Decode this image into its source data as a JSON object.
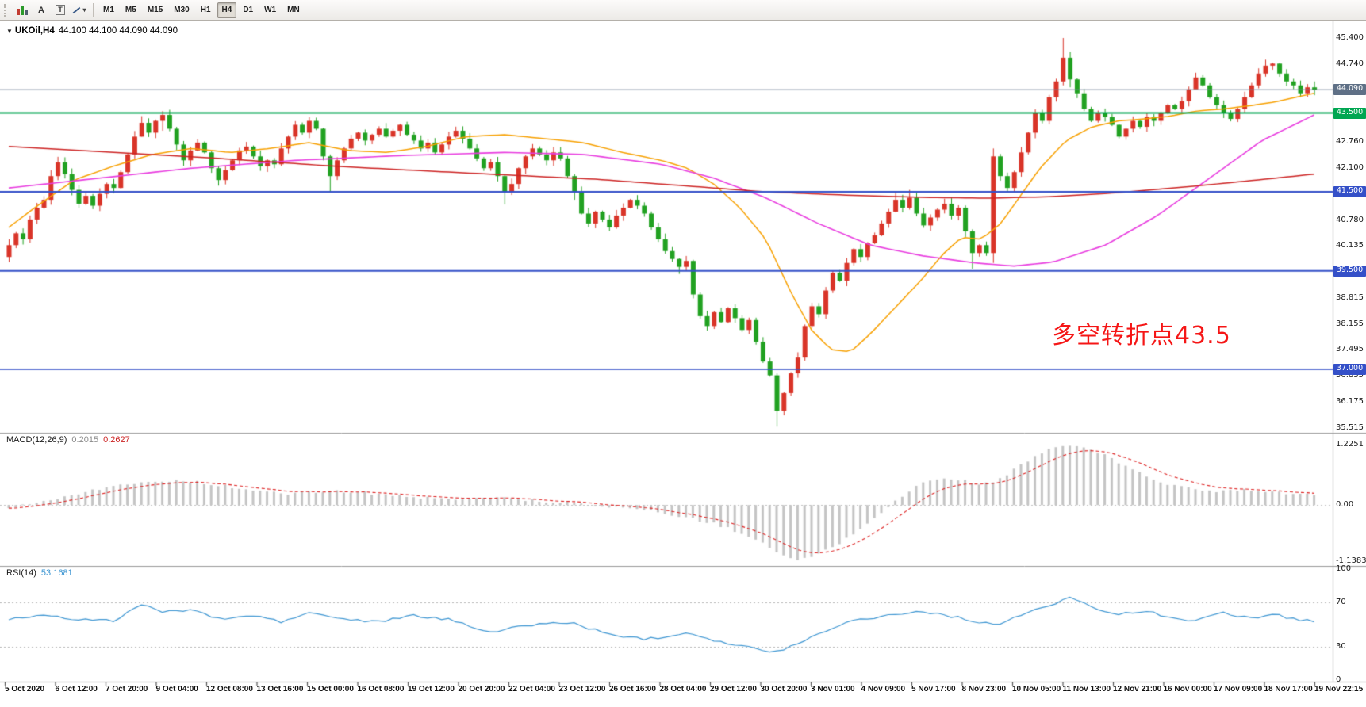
{
  "toolbar": {
    "tools": [
      {
        "icon": "candlestick-chart-icon"
      },
      {
        "icon": "letter-a-icon",
        "label": "A"
      },
      {
        "icon": "text-box-icon",
        "label": "T"
      },
      {
        "icon": "trendline-icon",
        "caret": "▾"
      }
    ],
    "timeframes": [
      {
        "label": "M1"
      },
      {
        "label": "M5"
      },
      {
        "label": "M15"
      },
      {
        "label": "M30"
      },
      {
        "label": "H1"
      },
      {
        "label": "H4",
        "active": true
      },
      {
        "label": "D1"
      },
      {
        "label": "W1"
      },
      {
        "label": "MN"
      }
    ]
  },
  "title": {
    "oneclick": "▼",
    "symbol_period": "UKOil,H4",
    "ohlc": "44.100 44.100 44.090 44.090"
  },
  "annotation": {
    "text": "多空转折点43.5",
    "color": "#f51616"
  },
  "indicators": {
    "macd": {
      "name": "MACD(12,26,9)",
      "value_main": "0.2015",
      "value_signal": "0.2627",
      "scale": [
        {
          "text": "1.2251",
          "value": 1.2251
        },
        {
          "text": "0.00",
          "value": 0
        },
        {
          "text": "-1.1383",
          "value": -1.1383
        }
      ]
    },
    "rsi": {
      "name": "RSI(14)",
      "value": "53.1681",
      "scale": [
        {
          "text": "100",
          "value": 100
        },
        {
          "text": "70",
          "value": 70
        },
        {
          "text": "30",
          "value": 30
        },
        {
          "text": "0",
          "value": 0
        }
      ],
      "levels": [
        70,
        30
      ]
    }
  },
  "price_scale": {
    "labels": [
      {
        "text": "45.400",
        "value": 45.4
      },
      {
        "text": "44.740",
        "value": 44.74
      },
      {
        "text": "42.760",
        "value": 42.76
      },
      {
        "text": "42.100",
        "value": 42.1
      },
      {
        "text": "40.780",
        "value": 40.78
      },
      {
        "text": "40.135",
        "value": 40.135
      },
      {
        "text": "38.815",
        "value": 38.815
      },
      {
        "text": "38.155",
        "value": 38.155
      },
      {
        "text": "37.495",
        "value": 37.495
      },
      {
        "text": "36.835",
        "value": 36.835
      },
      {
        "text": "36.175",
        "value": 36.175
      },
      {
        "text": "35.515",
        "value": 35.515
      }
    ],
    "boxed": [
      {
        "text": "44.090",
        "value": 44.09,
        "bg": "#5f7086"
      },
      {
        "text": "43.500",
        "value": 43.5,
        "bg": "#00a651"
      },
      {
        "text": "41.500",
        "value": 41.5,
        "bg": "#3450c8"
      },
      {
        "text": "39.500",
        "value": 39.5,
        "bg": "#3450c8"
      },
      {
        "text": "37.000",
        "value": 37.0,
        "bg": "#3450c8"
      }
    ]
  },
  "time_scale": {
    "labels": [
      "5 Oct 2020",
      "6 Oct 12:00",
      "7 Oct 20:00",
      "9 Oct 04:00",
      "12 Oct 08:00",
      "13 Oct 16:00",
      "15 Oct 00:00",
      "16 Oct 08:00",
      "19 Oct 12:00",
      "20 Oct 20:00",
      "22 Oct 04:00",
      "23 Oct 12:00",
      "26 Oct 16:00",
      "28 Oct 04:00",
      "29 Oct 12:00",
      "30 Oct 20:00",
      "3 Nov 01:00",
      "4 Nov 09:00",
      "5 Nov 17:00",
      "8 Nov 23:00",
      "10 Nov 05:00",
      "11 Nov 13:00",
      "12 Nov 21:00",
      "16 Nov 00:00",
      "17 Nov 09:00",
      "18 Nov 17:00",
      "19 Nov 22:15"
    ]
  },
  "chart_data": {
    "type": "candlestick",
    "symbol": "UKOil",
    "period": "H4",
    "price_range": [
      35.515,
      45.4
    ],
    "style": {
      "up_color": "#d93428",
      "down_color": "#21a121"
    },
    "candles": {
      "first_open": 39.85,
      "closes": [
        40.15,
        40.45,
        40.3,
        40.8,
        41.1,
        41.3,
        41.9,
        42.25,
        41.95,
        41.55,
        41.2,
        41.4,
        41.15,
        41.45,
        41.7,
        41.6,
        42.0,
        42.45,
        42.9,
        43.25,
        43.0,
        43.3,
        43.45,
        43.1,
        42.7,
        42.3,
        42.55,
        42.75,
        42.5,
        42.1,
        41.8,
        42.05,
        42.3,
        42.55,
        42.65,
        42.4,
        42.15,
        42.3,
        42.2,
        42.6,
        42.9,
        43.2,
        43.0,
        43.3,
        43.1,
        42.4,
        41.9,
        42.3,
        42.6,
        42.85,
        43.0,
        42.8,
        42.95,
        43.1,
        42.9,
        43.05,
        43.2,
        42.95,
        42.8,
        42.6,
        42.75,
        42.5,
        42.7,
        42.9,
        43.05,
        42.85,
        42.6,
        42.35,
        42.1,
        42.25,
        41.9,
        41.5,
        41.7,
        42.1,
        42.4,
        42.6,
        42.45,
        42.3,
        42.5,
        42.35,
        41.9,
        41.5,
        40.95,
        40.7,
        41.0,
        40.8,
        40.6,
        40.9,
        41.1,
        41.3,
        41.15,
        40.95,
        40.6,
        40.3,
        40.0,
        39.8,
        39.6,
        39.75,
        38.9,
        38.35,
        38.1,
        38.45,
        38.2,
        38.55,
        38.3,
        38.0,
        38.25,
        37.7,
        37.2,
        36.85,
        35.95,
        36.4,
        36.9,
        37.3,
        38.1,
        38.6,
        38.4,
        39.0,
        39.45,
        39.25,
        39.7,
        40.05,
        39.85,
        40.2,
        40.4,
        40.7,
        41.0,
        41.3,
        41.1,
        41.35,
        40.95,
        40.65,
        40.85,
        41.05,
        41.2,
        40.9,
        41.1,
        40.5,
        39.95,
        40.15,
        39.95,
        42.4,
        41.9,
        41.6,
        42.0,
        42.5,
        43.0,
        43.5,
        43.3,
        43.9,
        44.3,
        44.9,
        44.35,
        44.0,
        43.6,
        43.3,
        43.5,
        43.4,
        43.2,
        42.9,
        43.1,
        43.3,
        43.15,
        43.4,
        43.3,
        43.5,
        43.7,
        43.6,
        43.8,
        44.1,
        44.4,
        44.2,
        43.9,
        43.7,
        43.5,
        43.35,
        43.6,
        43.9,
        44.2,
        44.5,
        44.7,
        44.75,
        44.5,
        44.3,
        44.2,
        44.0,
        44.15,
        44.09
      ],
      "wick_overrides": {
        "0": [
          40.3,
          39.72
        ],
        "19": [
          43.42,
          42.9
        ],
        "22": [
          43.55,
          43.05
        ],
        "45": [
          43.12,
          42.3
        ],
        "46": [
          42.45,
          41.5
        ],
        "71": [
          41.95,
          41.18
        ],
        "81": [
          41.95,
          41.3
        ],
        "96": [
          39.82,
          39.42
        ],
        "98": [
          39.78,
          38.8
        ],
        "110": [
          36.9,
          35.55
        ],
        "127": [
          41.5,
          40.98
        ],
        "129": [
          41.55,
          41.05
        ],
        "138": [
          40.55,
          39.55
        ],
        "141": [
          42.6,
          39.7
        ],
        "151": [
          45.4,
          44.2
        ],
        "152": [
          45.05,
          44.15
        ],
        "170": [
          44.52,
          44.12
        ],
        "180": [
          44.85,
          44.42
        ],
        "187": [
          44.3,
          43.95
        ]
      }
    },
    "h_lines": [
      {
        "value": 44.09,
        "color": "#708299",
        "width": 1
      },
      {
        "value": 43.5,
        "color": "#00a651",
        "width": 2
      },
      {
        "value": 41.5,
        "color": "#3450c8",
        "width": 2
      },
      {
        "value": 39.5,
        "color": "#3450c8",
        "width": 2
      },
      {
        "value": 37.0,
        "color": "#3450c8",
        "width": 1.5
      }
    ],
    "moving_averages": [
      {
        "name": "fast-ma",
        "color": "#f7a000",
        "width": 1.5,
        "points": [
          [
            0,
            40.6
          ],
          [
            0.02,
            41.1
          ],
          [
            0.05,
            41.8
          ],
          [
            0.08,
            42.15
          ],
          [
            0.11,
            42.45
          ],
          [
            0.14,
            42.6
          ],
          [
            0.17,
            42.5
          ],
          [
            0.2,
            42.6
          ],
          [
            0.23,
            42.75
          ],
          [
            0.26,
            42.55
          ],
          [
            0.29,
            42.5
          ],
          [
            0.32,
            42.65
          ],
          [
            0.35,
            42.9
          ],
          [
            0.38,
            42.95
          ],
          [
            0.41,
            42.85
          ],
          [
            0.44,
            42.75
          ],
          [
            0.47,
            42.5
          ],
          [
            0.5,
            42.3
          ],
          [
            0.52,
            42.1
          ],
          [
            0.54,
            41.7
          ],
          [
            0.56,
            41.1
          ],
          [
            0.58,
            40.3
          ],
          [
            0.6,
            38.9
          ],
          [
            0.615,
            38.0
          ],
          [
            0.63,
            37.5
          ],
          [
            0.645,
            37.45
          ],
          [
            0.66,
            37.9
          ],
          [
            0.68,
            38.6
          ],
          [
            0.7,
            39.3
          ],
          [
            0.715,
            39.9
          ],
          [
            0.73,
            40.35
          ],
          [
            0.745,
            40.3
          ],
          [
            0.76,
            40.7
          ],
          [
            0.775,
            41.4
          ],
          [
            0.79,
            42.1
          ],
          [
            0.81,
            42.8
          ],
          [
            0.83,
            43.15
          ],
          [
            0.85,
            43.3
          ],
          [
            0.87,
            43.35
          ],
          [
            0.89,
            43.42
          ],
          [
            0.91,
            43.55
          ],
          [
            0.93,
            43.6
          ],
          [
            0.95,
            43.68
          ],
          [
            0.97,
            43.78
          ],
          [
            1,
            44.0
          ]
        ]
      },
      {
        "name": "medium-ma",
        "color": "#e83cdf",
        "width": 1.6,
        "points": [
          [
            0,
            41.6
          ],
          [
            0.07,
            41.85
          ],
          [
            0.14,
            42.1
          ],
          [
            0.22,
            42.3
          ],
          [
            0.3,
            42.42
          ],
          [
            0.38,
            42.5
          ],
          [
            0.44,
            42.45
          ],
          [
            0.5,
            42.2
          ],
          [
            0.54,
            41.85
          ],
          [
            0.58,
            41.35
          ],
          [
            0.62,
            40.7
          ],
          [
            0.66,
            40.15
          ],
          [
            0.7,
            39.88
          ],
          [
            0.74,
            39.7
          ],
          [
            0.77,
            39.62
          ],
          [
            0.8,
            39.72
          ],
          [
            0.84,
            40.15
          ],
          [
            0.88,
            40.9
          ],
          [
            0.92,
            41.85
          ],
          [
            0.96,
            42.8
          ],
          [
            1,
            43.45
          ]
        ]
      },
      {
        "name": "slow-ma",
        "color": "#cc2323",
        "width": 1.5,
        "points": [
          [
            0,
            42.65
          ],
          [
            0.08,
            42.5
          ],
          [
            0.16,
            42.35
          ],
          [
            0.25,
            42.15
          ],
          [
            0.35,
            41.98
          ],
          [
            0.45,
            41.82
          ],
          [
            0.52,
            41.65
          ],
          [
            0.58,
            41.5
          ],
          [
            0.64,
            41.42
          ],
          [
            0.7,
            41.36
          ],
          [
            0.75,
            41.34
          ],
          [
            0.8,
            41.38
          ],
          [
            0.85,
            41.48
          ],
          [
            0.9,
            41.62
          ],
          [
            0.95,
            41.78
          ],
          [
            1,
            41.95
          ]
        ]
      }
    ],
    "macd": {
      "range": [
        -1.1383,
        1.2251
      ],
      "hist_color": "#c4c4c4",
      "signal_color": "#dd2222",
      "histogram_points": [
        [
          0,
          -0.05
        ],
        [
          0.03,
          0.1
        ],
        [
          0.06,
          0.28
        ],
        [
          0.09,
          0.42
        ],
        [
          0.12,
          0.5
        ],
        [
          0.15,
          0.45
        ],
        [
          0.18,
          0.32
        ],
        [
          0.21,
          0.22
        ],
        [
          0.24,
          0.28
        ],
        [
          0.27,
          0.26
        ],
        [
          0.3,
          0.18
        ],
        [
          0.33,
          0.12
        ],
        [
          0.36,
          0.16
        ],
        [
          0.39,
          0.12
        ],
        [
          0.42,
          0.06
        ],
        [
          0.45,
          0
        ],
        [
          0.48,
          -0.08
        ],
        [
          0.51,
          -0.2
        ],
        [
          0.54,
          -0.38
        ],
        [
          0.56,
          -0.55
        ],
        [
          0.58,
          -0.82
        ],
        [
          0.595,
          -1.05
        ],
        [
          0.605,
          -1.14
        ],
        [
          0.62,
          -1.0
        ],
        [
          0.64,
          -0.72
        ],
        [
          0.655,
          -0.42
        ],
        [
          0.67,
          -0.12
        ],
        [
          0.685,
          0.2
        ],
        [
          0.7,
          0.45
        ],
        [
          0.715,
          0.55
        ],
        [
          0.73,
          0.5
        ],
        [
          0.745,
          0.42
        ],
        [
          0.755,
          0.46
        ],
        [
          0.77,
          0.72
        ],
        [
          0.785,
          0.98
        ],
        [
          0.8,
          1.15
        ],
        [
          0.81,
          1.22
        ],
        [
          0.825,
          1.16
        ],
        [
          0.84,
          1.0
        ],
        [
          0.855,
          0.8
        ],
        [
          0.87,
          0.6
        ],
        [
          0.885,
          0.45
        ],
        [
          0.9,
          0.35
        ],
        [
          0.915,
          0.3
        ],
        [
          0.93,
          0.28
        ],
        [
          0.945,
          0.32
        ],
        [
          0.96,
          0.3
        ],
        [
          0.975,
          0.25
        ],
        [
          1,
          0.2
        ]
      ]
    },
    "rsi": {
      "range": [
        0,
        100
      ],
      "color": "#3e96d2",
      "points": [
        [
          0,
          55
        ],
        [
          0.03,
          59
        ],
        [
          0.05,
          55
        ],
        [
          0.08,
          53
        ],
        [
          0.1,
          68
        ],
        [
          0.12,
          61
        ],
        [
          0.14,
          64
        ],
        [
          0.16,
          55
        ],
        [
          0.19,
          58
        ],
        [
          0.21,
          52
        ],
        [
          0.23,
          61
        ],
        [
          0.25,
          56
        ],
        [
          0.28,
          52
        ],
        [
          0.31,
          58
        ],
        [
          0.34,
          54
        ],
        [
          0.37,
          43
        ],
        [
          0.4,
          50
        ],
        [
          0.43,
          52
        ],
        [
          0.46,
          41
        ],
        [
          0.49,
          37
        ],
        [
          0.52,
          43
        ],
        [
          0.55,
          33
        ],
        [
          0.57,
          29
        ],
        [
          0.585,
          24
        ],
        [
          0.61,
          36
        ],
        [
          0.64,
          52
        ],
        [
          0.67,
          58
        ],
        [
          0.7,
          62
        ],
        [
          0.72,
          58
        ],
        [
          0.74,
          53
        ],
        [
          0.76,
          50
        ],
        [
          0.78,
          61
        ],
        [
          0.8,
          68
        ],
        [
          0.815,
          75
        ],
        [
          0.83,
          66
        ],
        [
          0.85,
          59
        ],
        [
          0.87,
          62
        ],
        [
          0.89,
          57
        ],
        [
          0.91,
          53
        ],
        [
          0.93,
          61
        ],
        [
          0.95,
          56
        ],
        [
          0.97,
          59
        ],
        [
          0.985,
          55
        ],
        [
          1,
          53.2
        ]
      ]
    }
  }
}
